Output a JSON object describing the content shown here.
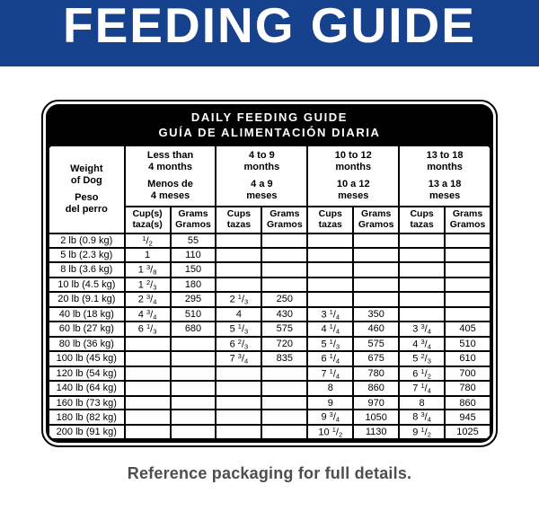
{
  "banner": {
    "title": "FEEDING GUIDE",
    "bg_color": "#16418c",
    "text_color": "#ffffff"
  },
  "table": {
    "title_en": "DAILY FEEDING GUIDE",
    "title_es": "GUÍA DE ALIMENTACIÓN DIARIA",
    "weight_header_en": "Weight\nof Dog",
    "weight_header_es": "Peso\ndel perro",
    "age_groups": [
      {
        "label_en": "Less than\n4 months",
        "label_es": "Menos de\n4 meses",
        "cups_label": "Cup(s)\ntaza(s)",
        "grams_label": "Grams\nGramos"
      },
      {
        "label_en": "4 to 9\nmonths",
        "label_es": "4 a 9\nmeses",
        "cups_label": "Cups\ntazas",
        "grams_label": "Grams\nGramos"
      },
      {
        "label_en": "10 to 12\nmonths",
        "label_es": "10 a 12\nmeses",
        "cups_label": "Cups\ntazas",
        "grams_label": "Grams\nGramos"
      },
      {
        "label_en": "13 to 18\nmonths",
        "label_es": "13 a 18\nmeses",
        "cups_label": "Cups\ntazas",
        "grams_label": "Grams\nGramos"
      }
    ]
  },
  "chart_data": {
    "type": "table",
    "title": "DAILY FEEDING GUIDE / GUÍA DE ALIMENTACIÓN DIARIA",
    "columns": [
      "Weight of Dog / Peso del perro",
      "Less than 4 months — Cup(s) taza(s)",
      "Less than 4 months — Grams Gramos",
      "4 to 9 months — Cups tazas",
      "4 to 9 months — Grams Gramos",
      "10 to 12 months — Cups tazas",
      "10 to 12 months — Grams Gramos",
      "13 to 18 months — Cups tazas",
      "13 to 18 months — Grams Gramos"
    ],
    "rows": [
      [
        "2 lb (0.9 kg)",
        "1/2",
        "55",
        "",
        "",
        "",
        "",
        "",
        ""
      ],
      [
        "5 lb (2.3 kg)",
        "1",
        "110",
        "",
        "",
        "",
        "",
        "",
        ""
      ],
      [
        "8 lb (3.6 kg)",
        "1 3/8",
        "150",
        "",
        "",
        "",
        "",
        "",
        ""
      ],
      [
        "10 lb (4.5 kg)",
        "1 2/3",
        "180",
        "",
        "",
        "",
        "",
        "",
        ""
      ],
      [
        "20 lb (9.1 kg)",
        "2 3/4",
        "295",
        "2 1/3",
        "250",
        "",
        "",
        "",
        ""
      ],
      [
        "40 lb (18 kg)",
        "4 3/4",
        "510",
        "4",
        "430",
        "3 1/4",
        "350",
        "",
        ""
      ],
      [
        "60 lb (27 kg)",
        "6 1/3",
        "680",
        "5 1/3",
        "575",
        "4 1/4",
        "460",
        "3 3/4",
        "405"
      ],
      [
        "80 lb (36 kg)",
        "",
        "",
        "6 2/3",
        "720",
        "5 1/3",
        "575",
        "4 3/4",
        "510"
      ],
      [
        "100 lb (45 kg)",
        "",
        "",
        "7 3/4",
        "835",
        "6 1/4",
        "675",
        "5 2/3",
        "610"
      ],
      [
        "120 lb (54 kg)",
        "",
        "",
        "",
        "",
        "7 1/4",
        "780",
        "6 1/2",
        "700"
      ],
      [
        "140 lb (64 kg)",
        "",
        "",
        "",
        "",
        "8",
        "860",
        "7 1/4",
        "780"
      ],
      [
        "160 lb (73 kg)",
        "",
        "",
        "",
        "",
        "9",
        "970",
        "8",
        "860"
      ],
      [
        "180 lb (82 kg)",
        "",
        "",
        "",
        "",
        "9 3/4",
        "1050",
        "8 3/4",
        "945"
      ],
      [
        "200 lb (91 kg)",
        "",
        "",
        "",
        "",
        "10 1/2",
        "1130",
        "9 1/2",
        "1025"
      ]
    ]
  },
  "footer": {
    "note": "Reference packaging for full details.",
    "text_color": "#4d4e50"
  }
}
